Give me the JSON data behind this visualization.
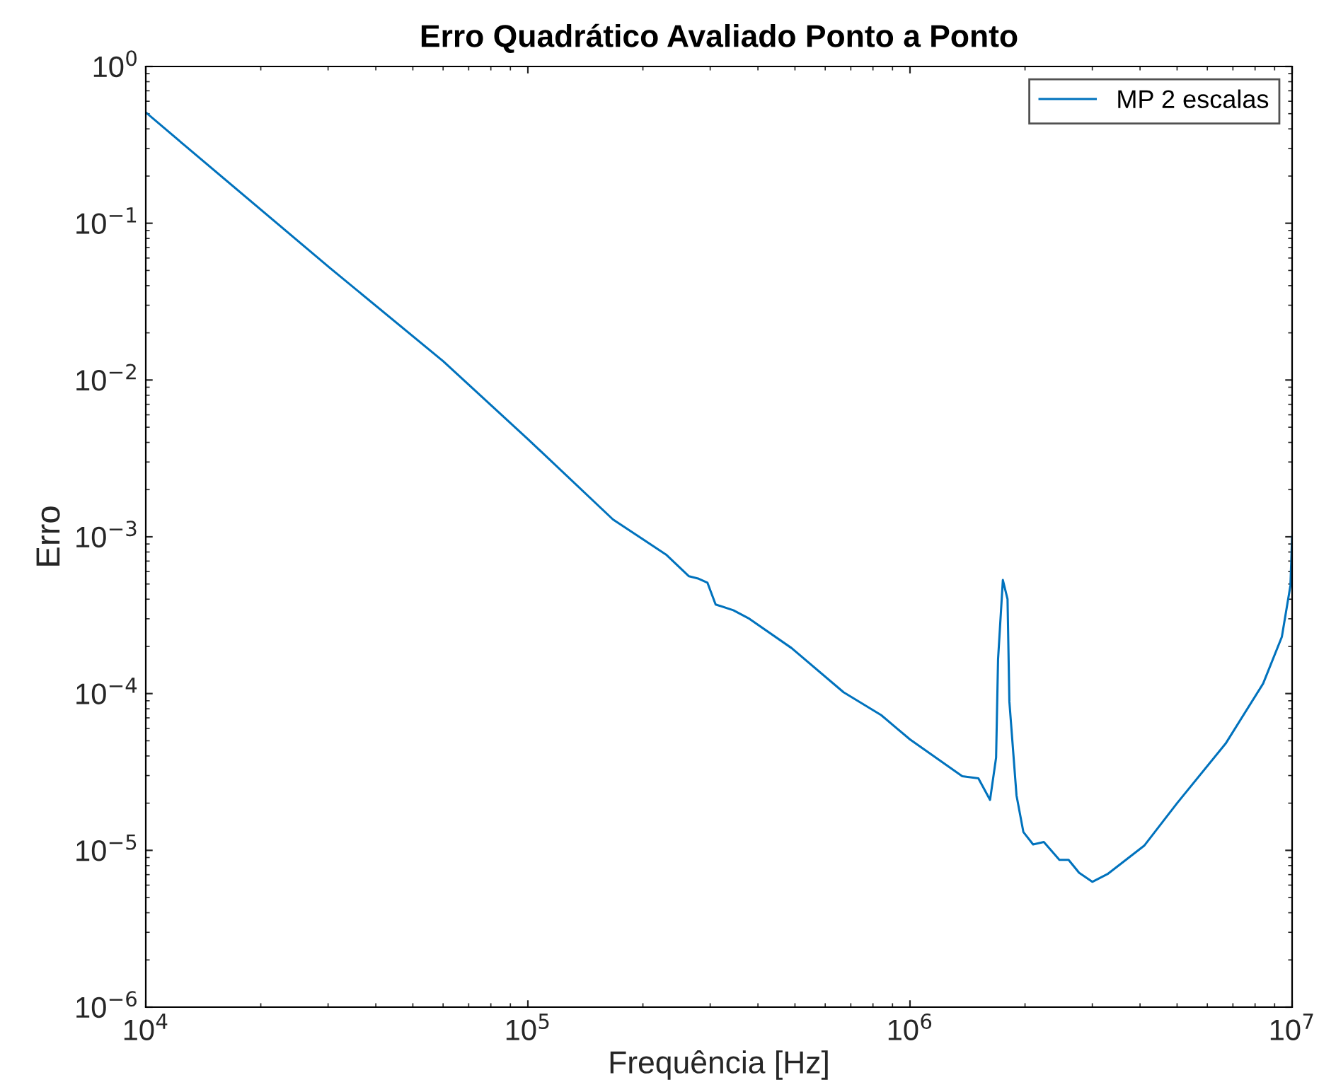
{
  "chart_data": {
    "type": "line",
    "title": "Erro Quadrático Avaliado Ponto a Ponto",
    "xlabel": "Frequência [Hz]",
    "ylabel": "Erro",
    "log": "xy",
    "grid": false,
    "legend": "top right",
    "line_style": "solid",
    "marker": "none",
    "xlim": [
      10000,
      10000000
    ],
    "ylim": [
      1e-06,
      1
    ],
    "xticks": [
      {
        "value": 10000,
        "label": "10$^{4}$"
      },
      {
        "value": 100000,
        "label": "10$^{5}$"
      },
      {
        "value": 1000000,
        "label": "10$^{6}$"
      },
      {
        "value": 10000000,
        "label": "10$^{7}$"
      }
    ],
    "yticks": [
      {
        "value": 1e-06,
        "label": "10$^{−6}$"
      },
      {
        "value": 1e-05,
        "label": "10$^{−5}$"
      },
      {
        "value": 0.0001,
        "label": "10$^{−4}$"
      },
      {
        "value": 0.001,
        "label": "10$^{−3}$"
      },
      {
        "value": 0.01,
        "label": "10$^{−2}$"
      },
      {
        "value": 0.1,
        "label": "10$^{−1}$"
      },
      {
        "value": 1,
        "label": "10$^{0}$"
      }
    ],
    "series": [
      {
        "name": "MP 2 escalas",
        "color": "#0072bd",
        "x": [
          10000,
          12600,
          30300,
          60000,
          100000,
          167000,
          230000,
          264000,
          280000,
          295000,
          310000,
          345000,
          380000,
          490000,
          670000,
          840000,
          1000000,
          1370000,
          1510000,
          1620000,
          1680000,
          1700000,
          1750000,
          1800000,
          1820000,
          1900000,
          1980000,
          2100000,
          2240000,
          2460000,
          2600000,
          2770000,
          3000000,
          3300000,
          4100000,
          5000000,
          6700000,
          8400000,
          9400000,
          9900000,
          10000000
        ],
        "values": [
          0.51,
          0.316,
          0.052,
          0.0132,
          0.0042,
          0.00129,
          0.00077,
          0.00056,
          0.00054,
          0.00051,
          0.00037,
          0.00034,
          0.0003,
          0.000195,
          0.000102,
          7.3e-05,
          5.1e-05,
          2.97e-05,
          2.88e-05,
          2.1e-05,
          3.9e-05,
          0.000165,
          0.00053,
          0.0004,
          8.9e-05,
          2.24e-05,
          1.31e-05,
          1.09e-05,
          1.13e-05,
          8.7e-06,
          8.7e-06,
          7.2e-06,
          6.3e-06,
          7.1e-06,
          1.07e-05,
          2e-05,
          4.8e-05,
          0.000116,
          0.00023,
          0.00049,
          0.001
        ]
      }
    ]
  }
}
